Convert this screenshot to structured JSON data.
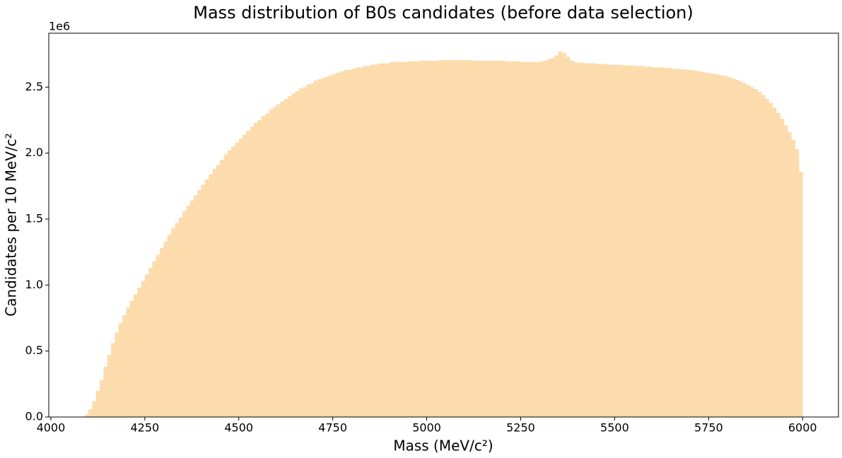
{
  "chart_data": {
    "type": "histogram",
    "title": "Mass distribution of B0s candidates (before data selection)",
    "x_label": "Mass (MeV/c²)",
    "y_label": "Candidates per 10 MeV/c²",
    "y_offset_label": "1e6",
    "color": "#fcdcad",
    "grid": false,
    "bins": [
      4090,
      4100,
      4110,
      4120,
      4130,
      4140,
      4150,
      4160,
      4170,
      4180,
      4190,
      4200,
      4210,
      4220,
      4230,
      4240,
      4250,
      4260,
      4270,
      4280,
      4290,
      4300,
      4310,
      4320,
      4330,
      4340,
      4350,
      4360,
      4370,
      4380,
      4390,
      4400,
      4410,
      4420,
      4430,
      4440,
      4450,
      4460,
      4470,
      4480,
      4490,
      4500,
      4510,
      4520,
      4530,
      4540,
      4550,
      4560,
      4570,
      4580,
      4590,
      4600,
      4610,
      4620,
      4630,
      4640,
      4650,
      4660,
      4670,
      4680,
      4690,
      4700,
      4710,
      4720,
      4730,
      4740,
      4750,
      4760,
      4770,
      4780,
      4790,
      4800,
      4810,
      4820,
      4830,
      4840,
      4850,
      4860,
      4870,
      4880,
      4890,
      4900,
      4910,
      4920,
      4930,
      4940,
      4950,
      4960,
      4970,
      4980,
      4990,
      5000,
      5010,
      5020,
      5030,
      5040,
      5050,
      5060,
      5070,
      5080,
      5090,
      5100,
      5110,
      5120,
      5130,
      5140,
      5150,
      5160,
      5170,
      5180,
      5190,
      5200,
      5210,
      5220,
      5230,
      5240,
      5250,
      5260,
      5270,
      5280,
      5290,
      5300,
      5310,
      5320,
      5330,
      5340,
      5350,
      5360,
      5370,
      5380,
      5390,
      5400,
      5410,
      5420,
      5430,
      5440,
      5450,
      5460,
      5470,
      5480,
      5490,
      5500,
      5510,
      5520,
      5530,
      5540,
      5550,
      5560,
      5570,
      5580,
      5590,
      5600,
      5610,
      5620,
      5630,
      5640,
      5650,
      5660,
      5670,
      5680,
      5690,
      5700,
      5710,
      5720,
      5730,
      5740,
      5750,
      5760,
      5770,
      5780,
      5790,
      5800,
      5810,
      5820,
      5830,
      5840,
      5850,
      5860,
      5870,
      5880,
      5890,
      5900,
      5910,
      5920,
      5930,
      5940,
      5950,
      5960,
      5970,
      5980,
      5990,
      6000
    ],
    "values": [
      20000,
      60000,
      120000,
      200000,
      280000,
      380000,
      470000,
      560000,
      640000,
      710000,
      770000,
      830000,
      880000,
      930000,
      980000,
      1030000,
      1080000,
      1130000,
      1180000,
      1230000,
      1280000,
      1330000,
      1380000,
      1430000,
      1470000,
      1510000,
      1560000,
      1600000,
      1640000,
      1680000,
      1720000,
      1760000,
      1800000,
      1840000,
      1880000,
      1910000,
      1950000,
      1990000,
      2020000,
      2050000,
      2080000,
      2110000,
      2140000,
      2170000,
      2200000,
      2230000,
      2250000,
      2280000,
      2300000,
      2330000,
      2350000,
      2370000,
      2390000,
      2410000,
      2430000,
      2450000,
      2470000,
      2490000,
      2500000,
      2520000,
      2530000,
      2550000,
      2560000,
      2570000,
      2580000,
      2590000,
      2600000,
      2610000,
      2620000,
      2630000,
      2630000,
      2640000,
      2650000,
      2650000,
      2660000,
      2660000,
      2670000,
      2670000,
      2680000,
      2680000,
      2680000,
      2690000,
      2690000,
      2690000,
      2690000,
      2690000,
      2695000,
      2695000,
      2695000,
      2700000,
      2700000,
      2700000,
      2700000,
      2700000,
      2705000,
      2705000,
      2705000,
      2705000,
      2705000,
      2705000,
      2705000,
      2705000,
      2705000,
      2700000,
      2700000,
      2700000,
      2700000,
      2700000,
      2700000,
      2700000,
      2700000,
      2700000,
      2695000,
      2695000,
      2695000,
      2695000,
      2690000,
      2690000,
      2690000,
      2690000,
      2690000,
      2695000,
      2700000,
      2710000,
      2720000,
      2740000,
      2770000,
      2760000,
      2730000,
      2700000,
      2690000,
      2685000,
      2685000,
      2680000,
      2680000,
      2680000,
      2675000,
      2675000,
      2675000,
      2670000,
      2670000,
      2670000,
      2670000,
      2665000,
      2665000,
      2665000,
      2660000,
      2660000,
      2660000,
      2655000,
      2655000,
      2650000,
      2650000,
      2650000,
      2645000,
      2645000,
      2640000,
      2640000,
      2635000,
      2635000,
      2630000,
      2630000,
      2625000,
      2620000,
      2615000,
      2610000,
      2605000,
      2600000,
      2595000,
      2590000,
      2585000,
      2575000,
      2565000,
      2555000,
      2545000,
      2530000,
      2515000,
      2500000,
      2485000,
      2465000,
      2440000,
      2410000,
      2380000,
      2345000,
      2305000,
      2260000,
      2210000,
      2160000,
      2100000,
      2030000,
      1860000
    ],
    "xlim": [
      3994.5,
      6095.5
    ],
    "xticks": [
      4000,
      4250,
      4500,
      4750,
      5000,
      5250,
      5500,
      5750,
      6000
    ],
    "ylim": [
      0,
      2908500
    ],
    "yticks": [
      {
        "value": 0,
        "label": "0.0"
      },
      {
        "value": 500000,
        "label": "0.5"
      },
      {
        "value": 1000000,
        "label": "1.0"
      },
      {
        "value": 1500000,
        "label": "1.5"
      },
      {
        "value": 2000000,
        "label": "2.0"
      },
      {
        "value": 2500000,
        "label": "2.5"
      }
    ]
  }
}
